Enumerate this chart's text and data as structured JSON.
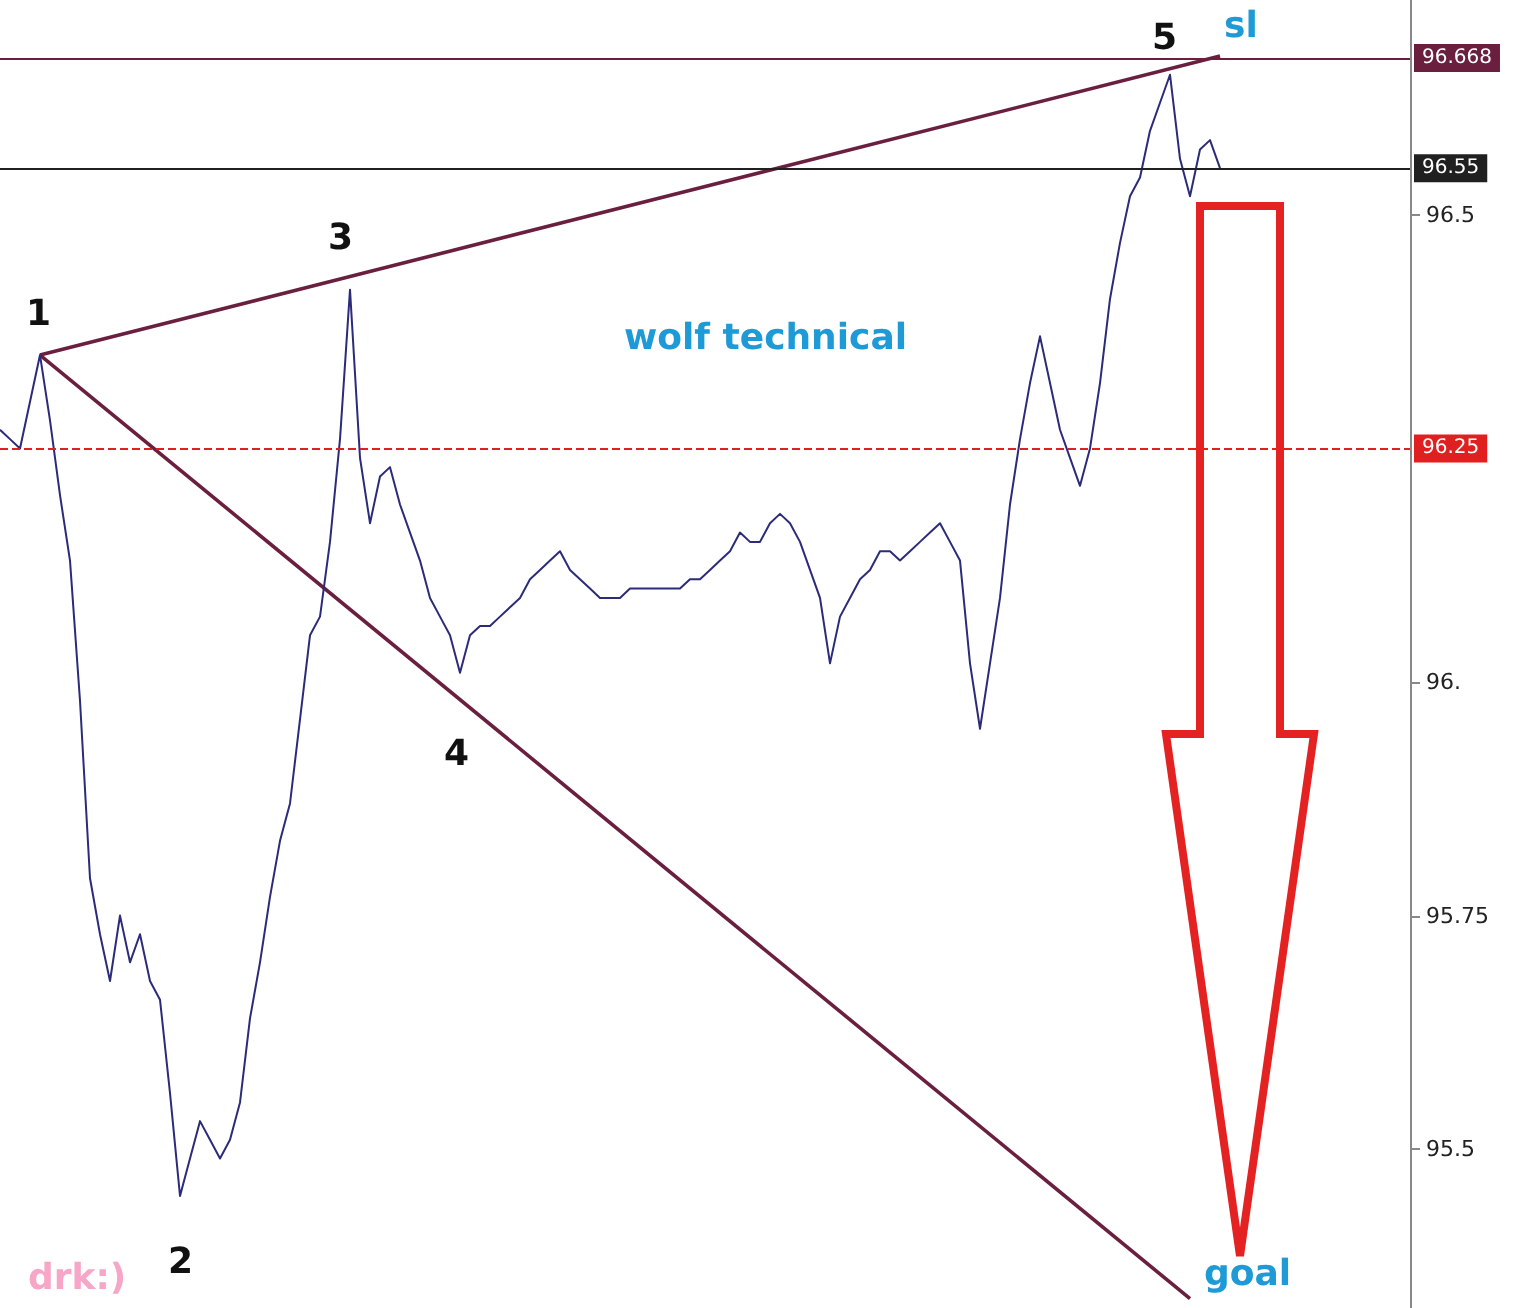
{
  "chart_data": {
    "type": "line",
    "categories": [
      null,
      null,
      null,
      null,
      null,
      null,
      null,
      null,
      null,
      null,
      null,
      null,
      null,
      null,
      null,
      null,
      null,
      null,
      null,
      null,
      null,
      null,
      null,
      null,
      null,
      null,
      null,
      null,
      null,
      null,
      null,
      null,
      null,
      null,
      null,
      null,
      null,
      null,
      null,
      null,
      null,
      null,
      null,
      null,
      null,
      null,
      null,
      null,
      null,
      null,
      null,
      null,
      null,
      null,
      null,
      null,
      null,
      null,
      null,
      null,
      null,
      null,
      null,
      null,
      null,
      null,
      null,
      null,
      null,
      null,
      null,
      null,
      null,
      null,
      null,
      null,
      null,
      null,
      null,
      null,
      null,
      null,
      null,
      null,
      null,
      null,
      null,
      null,
      null,
      null,
      null,
      null,
      null,
      null,
      null,
      null,
      null,
      null,
      null,
      null,
      null,
      null,
      null,
      null,
      null,
      null,
      null,
      null,
      null,
      null,
      null,
      null,
      null,
      null,
      null,
      null,
      null,
      null,
      null,
      null,
      null,
      null,
      null
    ],
    "ylim": [
      95.33,
      96.73
    ],
    "yticks": [
      95.5,
      95.75,
      {
        "value": 96,
        "label": "96."
      },
      96.5
    ],
    "tick_labels": "y",
    "series": [
      {
        "color": "#2b2b7a",
        "values": [
          96.27,
          96.26,
          96.25,
          96.3,
          96.35,
          96.28,
          96.2,
          96.13,
          95.98,
          95.79,
          95.73,
          95.68,
          95.75,
          95.7,
          95.73,
          95.68,
          95.66,
          95.56,
          95.45,
          95.49,
          95.53,
          95.51,
          95.49,
          95.51,
          95.55,
          95.64,
          95.7,
          95.77,
          95.83,
          95.87,
          95.96,
          96.05,
          96.07,
          96.15,
          96.26,
          96.42,
          96.24,
          96.17,
          96.22,
          96.23,
          96.19,
          96.16,
          96.13,
          96.09,
          96.07,
          96.05,
          96.01,
          96.05,
          96.06,
          96.06,
          96.07,
          96.08,
          96.09,
          96.11,
          96.12,
          96.13,
          96.14,
          96.12,
          96.11,
          96.1,
          96.09,
          96.09,
          96.09,
          96.1,
          96.1,
          96.1,
          96.1,
          96.1,
          96.1,
          96.11,
          96.11,
          96.12,
          96.13,
          96.14,
          96.16,
          96.15,
          96.15,
          96.17,
          96.18,
          96.17,
          96.15,
          96.12,
          96.09,
          96.02,
          96.07,
          96.09,
          96.11,
          96.12,
          96.14,
          96.14,
          96.13,
          96.14,
          96.15,
          96.16,
          96.17,
          96.15,
          96.13,
          96.02,
          95.95,
          96.02,
          96.09,
          96.19,
          96.26,
          96.32,
          96.37,
          96.32,
          96.27,
          96.24,
          96.21,
          96.25,
          96.32,
          96.41,
          96.47,
          96.52,
          96.54,
          96.59,
          96.62,
          96.65,
          96.56,
          96.52,
          96.57,
          96.58,
          96.55
        ]
      },
      {
        "type": "line",
        "color": "#6b1f3f",
        "values": [
          null,
          null,
          null,
          null,
          96.35,
          null,
          null,
          null,
          null,
          null,
          null,
          null,
          null,
          null,
          null,
          null,
          null,
          null,
          null,
          null,
          null,
          null,
          null,
          null,
          null,
          null,
          null,
          null,
          null,
          null,
          null,
          null,
          null,
          null,
          null,
          null,
          null,
          null,
          null,
          null,
          null,
          null,
          null,
          null,
          null,
          null,
          null,
          null,
          null,
          null,
          null,
          null,
          null,
          null,
          null,
          null,
          null,
          null,
          null,
          null,
          null,
          null,
          null,
          null,
          null,
          null,
          null,
          null,
          null,
          null,
          null,
          null,
          null,
          null,
          null,
          null,
          null,
          null,
          null,
          null,
          null,
          null,
          null,
          null,
          null,
          null,
          null,
          null,
          null,
          null,
          null,
          null,
          null,
          null,
          null,
          null,
          null,
          null,
          null,
          null,
          null,
          null,
          null,
          null,
          null,
          null,
          null,
          null,
          null,
          null,
          null,
          null,
          null,
          null,
          null,
          null,
          null,
          null,
          null,
          null,
          null,
          null,
          96.67
        ]
      },
      {
        "type": "line",
        "color": "#6b1f3f",
        "values": [
          null,
          null,
          null,
          null,
          96.35,
          null,
          null,
          null,
          null,
          null,
          null,
          null,
          null,
          null,
          null,
          null,
          null,
          null,
          null,
          null,
          null,
          null,
          null,
          null,
          null,
          null,
          null,
          null,
          null,
          null,
          null,
          null,
          null,
          null,
          null,
          null,
          null,
          null,
          null,
          null,
          null,
          null,
          null,
          null,
          null,
          null,
          null,
          null,
          null,
          null,
          null,
          null,
          null,
          null,
          null,
          null,
          null,
          null,
          null,
          null,
          null,
          null,
          null,
          null,
          null,
          null,
          null,
          null,
          null,
          null,
          null,
          null,
          null,
          null,
          null,
          null,
          null,
          null,
          null,
          null,
          null,
          null,
          null,
          null,
          null,
          null,
          null,
          null,
          null,
          null,
          null,
          null,
          null,
          null,
          null,
          null,
          null,
          null,
          null,
          null,
          null,
          null,
          null,
          null,
          null,
          null,
          null,
          null,
          null,
          null,
          null,
          null,
          null,
          null,
          null,
          null,
          null,
          null,
          null,
          95.34,
          null,
          null,
          null
        ]
      }
    ],
    "ref_lines": [
      {
        "axis": "y",
        "value": 96.25,
        "label": "96.25",
        "color": "#e02020",
        "line_style": "dashed"
      },
      {
        "axis": "y",
        "value": 96.55,
        "label": "96.55",
        "color": "#202020",
        "line_style": "solid"
      },
      {
        "axis": "y",
        "value": 96.668,
        "label": "96.668",
        "color": "#6b1f3f",
        "line_style": "solid"
      }
    ],
    "annotations": [
      "1",
      "2",
      "3",
      "4",
      "5",
      "sl",
      "goal",
      "wolf technical",
      "drk:)"
    ]
  }
}
